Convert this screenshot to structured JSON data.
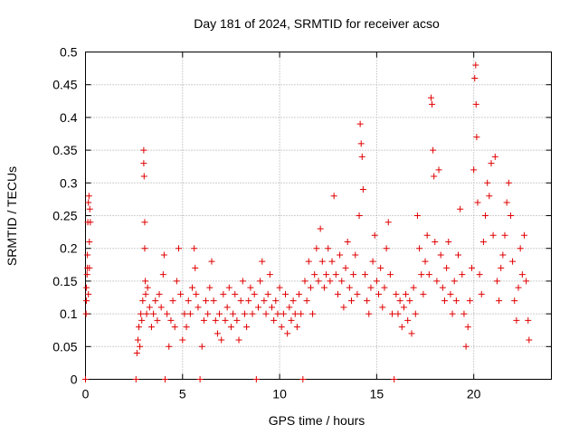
{
  "chart_data": {
    "type": "scatter",
    "title": "Day 181 of 2024, SRMTID for receiver acso",
    "xlabel": "GPS time / hours",
    "ylabel": "SRMTID / TECUs",
    "xlim": [
      0,
      24
    ],
    "ylim": [
      0,
      0.5
    ],
    "grid": true,
    "marker": "plus",
    "color": "#e00000",
    "x_ticks": [
      0,
      5,
      10,
      15,
      20
    ],
    "x_tick_labels": [
      "0",
      "5",
      "10",
      "15",
      "20"
    ],
    "y_ticks": [
      0,
      0.05,
      0.1,
      0.15,
      0.2,
      0.25,
      0.3,
      0.35,
      0.4,
      0.45,
      0.5
    ],
    "y_tick_labels": [
      "0",
      "0.05",
      "0.1",
      "0.15",
      "0.2",
      "0.25",
      "0.3",
      "0.35",
      "0.4",
      "0.45",
      "0.5"
    ],
    "series": [
      {
        "name": "SRMTID",
        "points": [
          [
            0.0,
            0.0
          ],
          [
            0.05,
            0.12
          ],
          [
            0.08,
            0.16
          ],
          [
            0.1,
            0.19
          ],
          [
            0.12,
            0.24
          ],
          [
            0.15,
            0.27
          ],
          [
            0.18,
            0.28
          ],
          [
            0.2,
            0.21
          ],
          [
            0.05,
            0.14
          ],
          [
            0.1,
            0.17
          ],
          [
            0.15,
            0.13
          ],
          [
            0.2,
            0.17
          ],
          [
            0.22,
            0.26
          ],
          [
            0.25,
            0.24
          ],
          [
            0.03,
            0.1
          ],
          [
            2.6,
            0.0
          ],
          [
            2.65,
            0.04
          ],
          [
            2.7,
            0.06
          ],
          [
            2.75,
            0.08
          ],
          [
            2.8,
            0.05
          ],
          [
            2.85,
            0.1
          ],
          [
            2.9,
            0.09
          ],
          [
            2.95,
            0.12
          ],
          [
            3.0,
            0.35
          ],
          [
            3.0,
            0.33
          ],
          [
            3.02,
            0.31
          ],
          [
            3.05,
            0.24
          ],
          [
            3.05,
            0.2
          ],
          [
            3.08,
            0.15
          ],
          [
            3.1,
            0.13
          ],
          [
            3.15,
            0.1
          ],
          [
            3.2,
            0.14
          ],
          [
            3.3,
            0.11
          ],
          [
            3.4,
            0.08
          ],
          [
            3.5,
            0.1
          ],
          [
            3.6,
            0.12
          ],
          [
            3.7,
            0.09
          ],
          [
            3.8,
            0.13
          ],
          [
            3.9,
            0.11
          ],
          [
            4.0,
            0.16
          ],
          [
            4.05,
            0.19
          ],
          [
            4.1,
            0.0
          ],
          [
            4.2,
            0.1
          ],
          [
            4.3,
            0.05
          ],
          [
            4.4,
            0.09
          ],
          [
            4.5,
            0.12
          ],
          [
            4.6,
            0.08
          ],
          [
            4.7,
            0.15
          ],
          [
            4.8,
            0.2
          ],
          [
            4.9,
            0.13
          ],
          [
            5.0,
            0.06
          ],
          [
            5.1,
            0.1
          ],
          [
            5.2,
            0.08
          ],
          [
            5.3,
            0.12
          ],
          [
            5.4,
            0.1
          ],
          [
            5.5,
            0.14
          ],
          [
            5.6,
            0.2
          ],
          [
            5.65,
            0.17
          ],
          [
            5.7,
            0.13
          ],
          [
            5.8,
            0.11
          ],
          [
            5.9,
            0.0
          ],
          [
            6.0,
            0.05
          ],
          [
            6.1,
            0.09
          ],
          [
            6.2,
            0.12
          ],
          [
            6.3,
            0.1
          ],
          [
            6.4,
            0.14
          ],
          [
            6.5,
            0.18
          ],
          [
            6.6,
            0.12
          ],
          [
            6.7,
            0.09
          ],
          [
            6.8,
            0.07
          ],
          [
            6.9,
            0.1
          ],
          [
            7.0,
            0.06
          ],
          [
            7.1,
            0.13
          ],
          [
            7.2,
            0.09
          ],
          [
            7.3,
            0.11
          ],
          [
            7.4,
            0.14
          ],
          [
            7.5,
            0.08
          ],
          [
            7.6,
            0.1
          ],
          [
            7.7,
            0.13
          ],
          [
            7.8,
            0.09
          ],
          [
            7.9,
            0.06
          ],
          [
            8.0,
            0.12
          ],
          [
            8.1,
            0.15
          ],
          [
            8.2,
            0.1
          ],
          [
            8.3,
            0.08
          ],
          [
            8.4,
            0.12
          ],
          [
            8.5,
            0.14
          ],
          [
            8.6,
            0.1
          ],
          [
            8.7,
            0.13
          ],
          [
            8.8,
            0.0
          ],
          [
            8.9,
            0.11
          ],
          [
            9.0,
            0.15
          ],
          [
            9.1,
            0.18
          ],
          [
            9.2,
            0.12
          ],
          [
            9.3,
            0.1
          ],
          [
            9.4,
            0.13
          ],
          [
            9.5,
            0.16
          ],
          [
            9.6,
            0.11
          ],
          [
            9.7,
            0.09
          ],
          [
            9.8,
            0.12
          ],
          [
            9.9,
            0.1
          ],
          [
            10.0,
            0.14
          ],
          [
            10.1,
            0.08
          ],
          [
            10.2,
            0.1
          ],
          [
            10.3,
            0.13
          ],
          [
            10.4,
            0.07
          ],
          [
            10.5,
            0.11
          ],
          [
            10.6,
            0.09
          ],
          [
            10.7,
            0.12
          ],
          [
            10.8,
            0.1
          ],
          [
            10.9,
            0.08
          ],
          [
            11.0,
            0.13
          ],
          [
            11.1,
            0.1
          ],
          [
            11.2,
            0.0
          ],
          [
            11.3,
            0.15
          ],
          [
            11.4,
            0.12
          ],
          [
            11.5,
            0.18
          ],
          [
            11.6,
            0.14
          ],
          [
            11.7,
            0.1
          ],
          [
            11.8,
            0.16
          ],
          [
            11.9,
            0.2
          ],
          [
            12.0,
            0.15
          ],
          [
            12.1,
            0.23
          ],
          [
            12.2,
            0.18
          ],
          [
            12.3,
            0.14
          ],
          [
            12.4,
            0.16
          ],
          [
            12.5,
            0.2
          ],
          [
            12.6,
            0.15
          ],
          [
            12.7,
            0.18
          ],
          [
            12.8,
            0.28
          ],
          [
            12.9,
            0.16
          ],
          [
            13.0,
            0.13
          ],
          [
            13.1,
            0.19
          ],
          [
            13.2,
            0.15
          ],
          [
            13.3,
            0.11
          ],
          [
            13.4,
            0.17
          ],
          [
            13.5,
            0.21
          ],
          [
            13.6,
            0.14
          ],
          [
            13.7,
            0.12
          ],
          [
            13.8,
            0.16
          ],
          [
            13.9,
            0.19
          ],
          [
            14.0,
            0.13
          ],
          [
            14.1,
            0.25
          ],
          [
            14.15,
            0.39
          ],
          [
            14.2,
            0.36
          ],
          [
            14.25,
            0.34
          ],
          [
            14.3,
            0.29
          ],
          [
            14.4,
            0.16
          ],
          [
            14.5,
            0.12
          ],
          [
            14.6,
            0.1
          ],
          [
            14.7,
            0.14
          ],
          [
            14.8,
            0.18
          ],
          [
            14.9,
            0.22
          ],
          [
            15.0,
            0.15
          ],
          [
            15.1,
            0.13
          ],
          [
            15.2,
            0.17
          ],
          [
            15.3,
            0.11
          ],
          [
            15.4,
            0.14
          ],
          [
            15.5,
            0.2
          ],
          [
            15.6,
            0.24
          ],
          [
            15.7,
            0.16
          ],
          [
            15.8,
            0.1
          ],
          [
            15.9,
            0.0
          ],
          [
            16.0,
            0.13
          ],
          [
            16.1,
            0.1
          ],
          [
            16.2,
            0.12
          ],
          [
            16.3,
            0.08
          ],
          [
            16.4,
            0.11
          ],
          [
            16.5,
            0.13
          ],
          [
            16.6,
            0.09
          ],
          [
            16.7,
            0.12
          ],
          [
            16.8,
            0.07
          ],
          [
            16.9,
            0.14
          ],
          [
            17.0,
            0.1
          ],
          [
            17.1,
            0.25
          ],
          [
            17.2,
            0.2
          ],
          [
            17.3,
            0.16
          ],
          [
            17.4,
            0.13
          ],
          [
            17.5,
            0.18
          ],
          [
            17.6,
            0.22
          ],
          [
            17.7,
            0.16
          ],
          [
            17.8,
            0.43
          ],
          [
            17.85,
            0.42
          ],
          [
            17.9,
            0.35
          ],
          [
            17.95,
            0.31
          ],
          [
            18.0,
            0.21
          ],
          [
            18.1,
            0.15
          ],
          [
            18.2,
            0.32
          ],
          [
            18.3,
            0.19
          ],
          [
            18.4,
            0.14
          ],
          [
            18.5,
            0.12
          ],
          [
            18.6,
            0.17
          ],
          [
            18.7,
            0.21
          ],
          [
            18.8,
            0.13
          ],
          [
            18.9,
            0.1
          ],
          [
            19.0,
            0.15
          ],
          [
            19.1,
            0.12
          ],
          [
            19.2,
            0.19
          ],
          [
            19.3,
            0.26
          ],
          [
            19.4,
            0.16
          ],
          [
            19.5,
            0.1
          ],
          [
            19.6,
            0.05
          ],
          [
            19.7,
            0.08
          ],
          [
            19.8,
            0.12
          ],
          [
            19.9,
            0.17
          ],
          [
            20.0,
            0.32
          ],
          [
            20.05,
            0.46
          ],
          [
            20.1,
            0.48
          ],
          [
            20.12,
            0.42
          ],
          [
            20.15,
            0.37
          ],
          [
            20.2,
            0.27
          ],
          [
            20.3,
            0.16
          ],
          [
            20.4,
            0.13
          ],
          [
            20.5,
            0.21
          ],
          [
            20.6,
            0.25
          ],
          [
            20.7,
            0.3
          ],
          [
            20.8,
            0.28
          ],
          [
            20.9,
            0.33
          ],
          [
            21.0,
            0.22
          ],
          [
            21.1,
            0.34
          ],
          [
            21.2,
            0.15
          ],
          [
            21.3,
            0.12
          ],
          [
            21.4,
            0.17
          ],
          [
            21.5,
            0.19
          ],
          [
            21.6,
            0.22
          ],
          [
            21.7,
            0.27
          ],
          [
            21.8,
            0.3
          ],
          [
            21.9,
            0.25
          ],
          [
            22.0,
            0.18
          ],
          [
            22.1,
            0.12
          ],
          [
            22.2,
            0.09
          ],
          [
            22.3,
            0.14
          ],
          [
            22.4,
            0.2
          ],
          [
            22.5,
            0.16
          ],
          [
            22.6,
            0.22
          ],
          [
            22.7,
            0.15
          ],
          [
            22.8,
            0.09
          ],
          [
            22.85,
            0.06
          ]
        ]
      }
    ]
  }
}
